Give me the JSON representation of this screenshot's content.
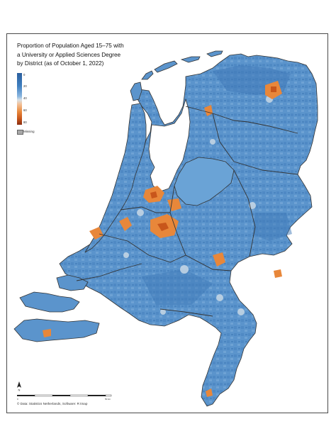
{
  "title_lines": [
    "Proportion of Population Aged 15–75 with",
    "a University or Applied Sciences Degree",
    "by District (as of October 1, 2022)"
  ],
  "legend": {
    "ticks": [
      "0",
      "20",
      "40",
      "60",
      "80"
    ],
    "colors": [
      "#2b5f9e",
      "#3f7fc0",
      "#6aa3d6",
      "#c9d9e6",
      "#f2c29a",
      "#e8873a",
      "#c8561b",
      "#8b2e12"
    ],
    "missing_label": "Missing",
    "missing_color": "#a8a8a8"
  },
  "map": {
    "land_color": "#5b94cc",
    "dark_region_color": "#3f79b8",
    "light_region_color": "#8ab6df",
    "pale_color": "#c9d9e6",
    "orange_color": "#e8873a",
    "dark_orange_color": "#c8561b",
    "boundary_color": "#333333"
  },
  "scale_bar": {
    "labels": [
      "0",
      "",
      "",
      "",
      "",
      "50 km"
    ]
  },
  "north_arrow": "N",
  "credit": "© Data: Statistics Netherlands, Software: R tmap"
}
